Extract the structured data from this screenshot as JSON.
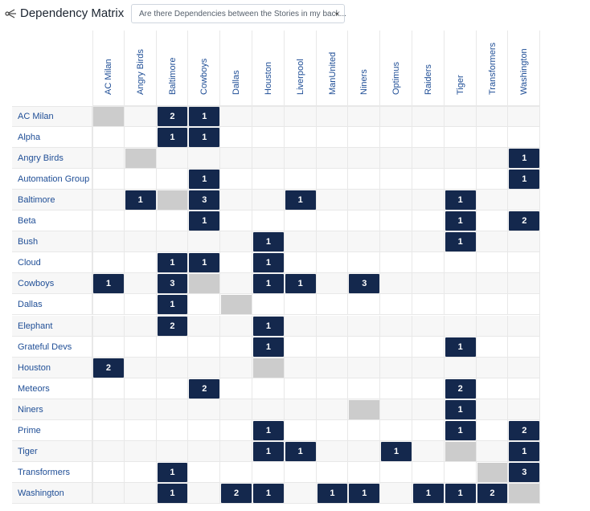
{
  "header": {
    "title": "Dependency Matrix",
    "select_value": "Are there Dependencies between the Stories in my back...",
    "caret": "▾"
  },
  "matrix": {
    "columns": [
      "AC Milan",
      "Angry Birds",
      "Baltimore",
      "Cowboys",
      "Dallas",
      "Houston",
      "Liverpool",
      "ManUnited",
      "Niners",
      "Optimus",
      "Raiders",
      "Tiger",
      "Transformers",
      "Washington"
    ],
    "rows": [
      "AC Milan",
      "Alpha",
      "Angry Birds",
      "Automation Group",
      "Baltimore",
      "Beta",
      "Bush",
      "Cloud",
      "Cowboys",
      "Dallas",
      "Elephant",
      "Grateful Devs",
      "Houston",
      "Meteors",
      "Niners",
      "Prime",
      "Tiger",
      "Transformers",
      "Washington"
    ],
    "cells": [
      {
        "row": 0,
        "col": 2,
        "value": "2"
      },
      {
        "row": 0,
        "col": 3,
        "value": "1"
      },
      {
        "row": 1,
        "col": 2,
        "value": "1"
      },
      {
        "row": 1,
        "col": 3,
        "value": "1"
      },
      {
        "row": 2,
        "col": 13,
        "value": "1"
      },
      {
        "row": 3,
        "col": 3,
        "value": "1"
      },
      {
        "row": 3,
        "col": 13,
        "value": "1"
      },
      {
        "row": 4,
        "col": 1,
        "value": "1"
      },
      {
        "row": 4,
        "col": 3,
        "value": "3"
      },
      {
        "row": 4,
        "col": 6,
        "value": "1"
      },
      {
        "row": 4,
        "col": 11,
        "value": "1"
      },
      {
        "row": 5,
        "col": 3,
        "value": "1"
      },
      {
        "row": 5,
        "col": 11,
        "value": "1"
      },
      {
        "row": 5,
        "col": 13,
        "value": "2"
      },
      {
        "row": 6,
        "col": 5,
        "value": "1"
      },
      {
        "row": 6,
        "col": 11,
        "value": "1"
      },
      {
        "row": 7,
        "col": 2,
        "value": "1"
      },
      {
        "row": 7,
        "col": 3,
        "value": "1"
      },
      {
        "row": 7,
        "col": 5,
        "value": "1"
      },
      {
        "row": 8,
        "col": 0,
        "value": "1"
      },
      {
        "row": 8,
        "col": 2,
        "value": "3"
      },
      {
        "row": 8,
        "col": 5,
        "value": "1"
      },
      {
        "row": 8,
        "col": 6,
        "value": "1"
      },
      {
        "row": 8,
        "col": 8,
        "value": "3"
      },
      {
        "row": 9,
        "col": 2,
        "value": "1"
      },
      {
        "row": 10,
        "col": 2,
        "value": "2"
      },
      {
        "row": 10,
        "col": 5,
        "value": "1"
      },
      {
        "row": 11,
        "col": 5,
        "value": "1"
      },
      {
        "row": 11,
        "col": 11,
        "value": "1"
      },
      {
        "row": 12,
        "col": 0,
        "value": "2"
      },
      {
        "row": 13,
        "col": 3,
        "value": "2"
      },
      {
        "row": 13,
        "col": 11,
        "value": "2"
      },
      {
        "row": 14,
        "col": 11,
        "value": "1"
      },
      {
        "row": 15,
        "col": 5,
        "value": "1"
      },
      {
        "row": 15,
        "col": 11,
        "value": "1"
      },
      {
        "row": 15,
        "col": 13,
        "value": "2"
      },
      {
        "row": 16,
        "col": 5,
        "value": "1"
      },
      {
        "row": 16,
        "col": 6,
        "value": "1"
      },
      {
        "row": 16,
        "col": 9,
        "value": "1"
      },
      {
        "row": 16,
        "col": 13,
        "value": "1"
      },
      {
        "row": 17,
        "col": 2,
        "value": "1"
      },
      {
        "row": 17,
        "col": 13,
        "value": "3"
      },
      {
        "row": 18,
        "col": 2,
        "value": "1"
      },
      {
        "row": 18,
        "col": 4,
        "value": "2"
      },
      {
        "row": 18,
        "col": 5,
        "value": "1"
      },
      {
        "row": 18,
        "col": 7,
        "value": "1"
      },
      {
        "row": 18,
        "col": 8,
        "value": "1"
      },
      {
        "row": 18,
        "col": 10,
        "value": "1"
      },
      {
        "row": 18,
        "col": 11,
        "value": "1"
      },
      {
        "row": 18,
        "col": 12,
        "value": "2"
      }
    ],
    "self_cells": [
      {
        "row": 0,
        "col": 0
      },
      {
        "row": 2,
        "col": 1
      },
      {
        "row": 4,
        "col": 2
      },
      {
        "row": 8,
        "col": 3
      },
      {
        "row": 9,
        "col": 4
      },
      {
        "row": 12,
        "col": 5
      },
      {
        "row": 14,
        "col": 8
      },
      {
        "row": 16,
        "col": 11
      },
      {
        "row": 17,
        "col": 12
      },
      {
        "row": 18,
        "col": 13
      }
    ]
  }
}
